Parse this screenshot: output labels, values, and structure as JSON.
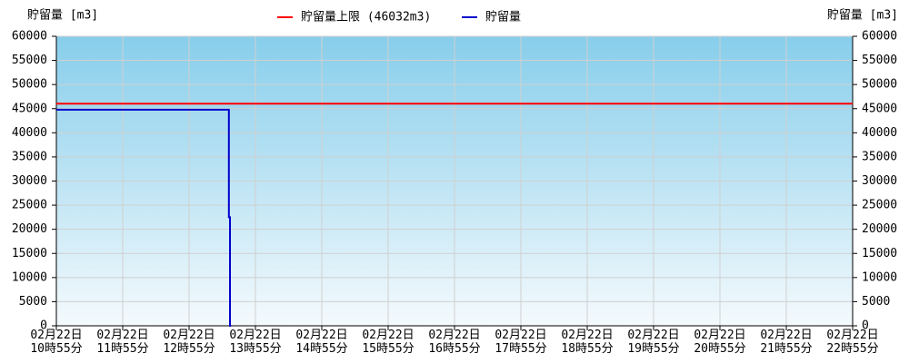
{
  "chart_data": {
    "type": "line",
    "y_label": "貯留量 [m3]",
    "y2_label": "貯留量 [m3]",
    "xlim": [
      "02月22日 10時55分",
      "02月22日 22時55分"
    ],
    "xticks": [
      "02月22日 10時55分",
      "02月22日 11時55分",
      "02月22日 12時55分",
      "02月22日 13時55分",
      "02月22日 14時55分",
      "02月22日 15時55分",
      "02月22日 16時55分",
      "02月22日 17時55分",
      "02月22日 18時55分",
      "02月22日 19時55分",
      "02月22日 20時55分",
      "02月22日 21時55分",
      "02月22日 22時55分"
    ],
    "ylim": [
      0,
      60000
    ],
    "yticks": [
      0,
      5000,
      10000,
      15000,
      20000,
      25000,
      30000,
      35000,
      40000,
      45000,
      50000,
      55000,
      60000
    ],
    "y2lim": [
      0,
      60000
    ],
    "y2ticks": [
      0,
      5000,
      10000,
      15000,
      20000,
      25000,
      30000,
      35000,
      40000,
      45000,
      50000,
      55000,
      60000
    ],
    "grid": true,
    "legend": "top",
    "series": [
      {
        "name": "貯留量上限 (46032m3)",
        "color": "#ff0000",
        "x": [
          "02月22日 10時55分",
          "02月22日 22時55分"
        ],
        "values": [
          46032,
          46032
        ]
      },
      {
        "name": "貯留量",
        "color": "#0000cc",
        "x": [
          "02月22日 10時55分",
          "02月22日 13時31分",
          "02月22日 13時31分",
          "02月22日 13時32分",
          "02月22日 13時32分",
          "02月22日 13時33分"
        ],
        "values": [
          44800,
          44800,
          22500,
          22500,
          0,
          0
        ]
      }
    ]
  }
}
